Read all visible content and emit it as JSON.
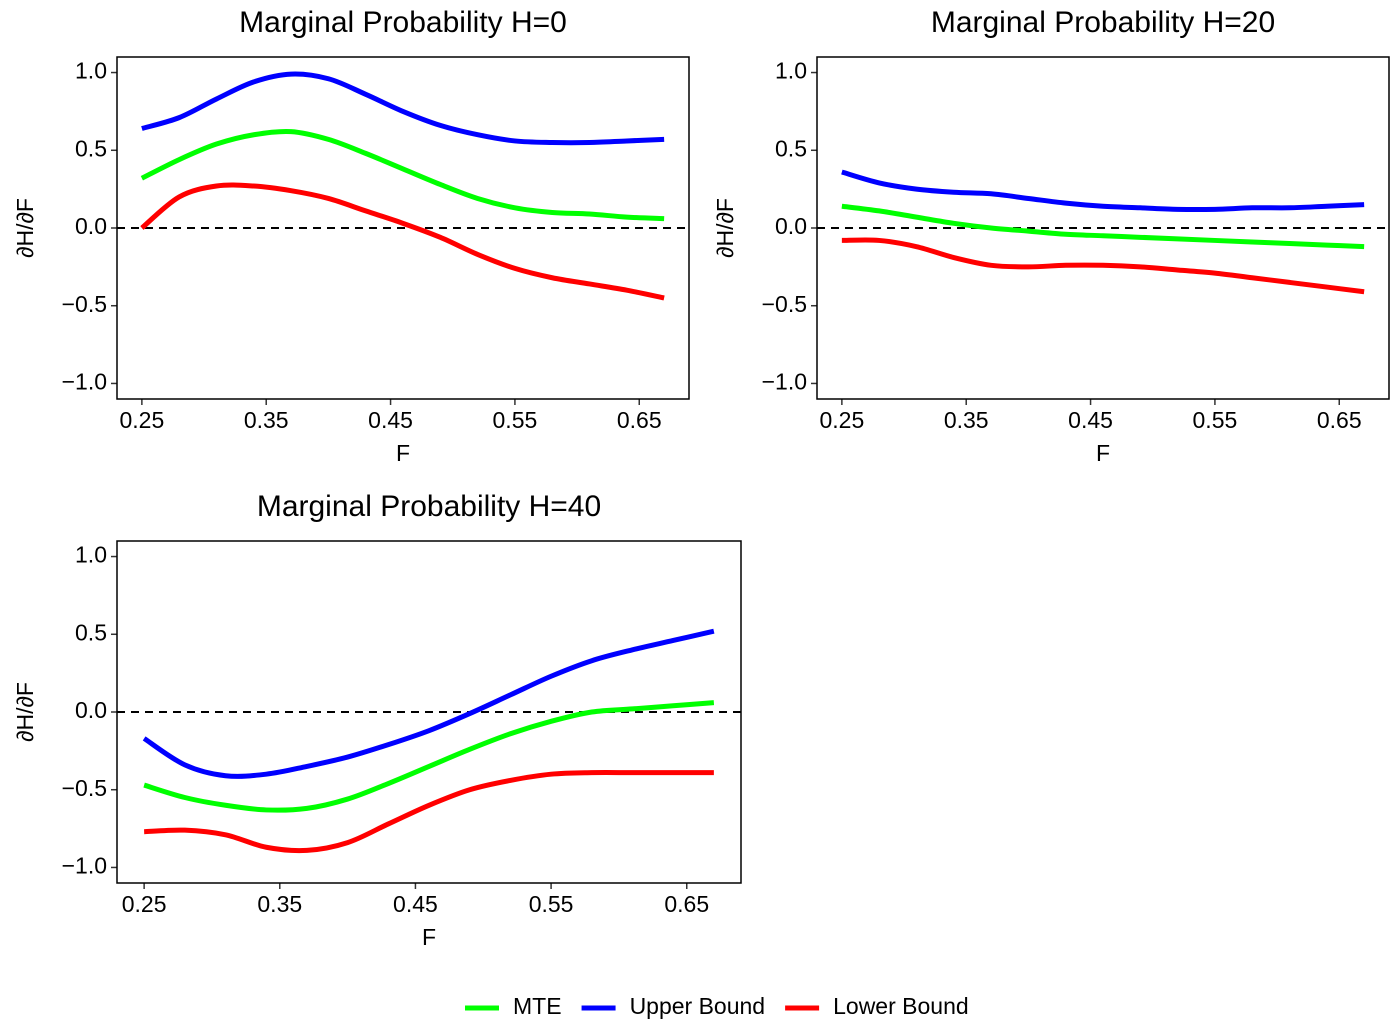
{
  "chart_data": [
    {
      "type": "line",
      "title": "Marginal Probability H=0",
      "xlabel": "F",
      "ylabel": "∂H/∂F",
      "x": [
        0.25,
        0.28,
        0.31,
        0.34,
        0.37,
        0.4,
        0.43,
        0.46,
        0.49,
        0.52,
        0.55,
        0.58,
        0.61,
        0.64,
        0.67
      ],
      "series": [
        {
          "name": "MTE",
          "color": "#00ff00",
          "values": [
            0.32,
            0.44,
            0.54,
            0.6,
            0.62,
            0.57,
            0.48,
            0.38,
            0.28,
            0.19,
            0.13,
            0.1,
            0.09,
            0.07,
            0.06
          ]
        },
        {
          "name": "Upper Bound",
          "color": "#0000ff",
          "values": [
            0.64,
            0.71,
            0.83,
            0.94,
            0.99,
            0.96,
            0.86,
            0.75,
            0.66,
            0.6,
            0.56,
            0.55,
            0.55,
            0.56,
            0.57
          ]
        },
        {
          "name": "Lower Bound",
          "color": "#ff0000",
          "values": [
            0.0,
            0.2,
            0.27,
            0.27,
            0.24,
            0.19,
            0.11,
            0.03,
            -0.06,
            -0.17,
            -0.26,
            -0.32,
            -0.36,
            -0.4,
            -0.45
          ]
        }
      ],
      "xlim": [
        0.23,
        0.69
      ],
      "xticks": [
        0.25,
        0.35,
        0.45,
        0.55,
        0.65
      ],
      "ylim": [
        -1.1,
        1.1
      ],
      "yticks": [
        {
          "value": -1,
          "label": "−1.0"
        },
        {
          "value": -0.5,
          "label": "−0.5"
        },
        {
          "value": 0,
          "label": "0.0"
        },
        0.5,
        {
          "value": 1,
          "label": "1.0"
        }
      ],
      "hline": 0
    },
    {
      "type": "line",
      "title": "Marginal Probability H=20",
      "xlabel": "F",
      "ylabel": "∂H/∂F",
      "x": [
        0.25,
        0.28,
        0.31,
        0.34,
        0.37,
        0.4,
        0.43,
        0.46,
        0.49,
        0.52,
        0.55,
        0.58,
        0.61,
        0.64,
        0.67
      ],
      "series": [
        {
          "name": "MTE",
          "color": "#00ff00",
          "values": [
            0.14,
            0.11,
            0.07,
            0.03,
            0.0,
            -0.02,
            -0.04,
            -0.05,
            -0.06,
            -0.07,
            -0.08,
            -0.09,
            -0.1,
            -0.11,
            -0.12
          ]
        },
        {
          "name": "Upper Bound",
          "color": "#0000ff",
          "values": [
            0.36,
            0.29,
            0.25,
            0.23,
            0.22,
            0.19,
            0.16,
            0.14,
            0.13,
            0.12,
            0.12,
            0.13,
            0.13,
            0.14,
            0.15
          ]
        },
        {
          "name": "Lower Bound",
          "color": "#ff0000",
          "values": [
            -0.08,
            -0.08,
            -0.12,
            -0.19,
            -0.24,
            -0.25,
            -0.24,
            -0.24,
            -0.25,
            -0.27,
            -0.29,
            -0.32,
            -0.35,
            -0.38,
            -0.41
          ]
        }
      ],
      "xlim": [
        0.23,
        0.69
      ],
      "xticks": [
        0.25,
        0.35,
        0.45,
        0.55,
        0.65
      ],
      "ylim": [
        -1.1,
        1.1
      ],
      "yticks": [
        {
          "value": -1,
          "label": "−1.0"
        },
        {
          "value": -0.5,
          "label": "−0.5"
        },
        {
          "value": 0,
          "label": "0.0"
        },
        0.5,
        {
          "value": 1,
          "label": "1.0"
        }
      ],
      "hline": 0
    },
    {
      "type": "line",
      "title": "Marginal Probability H=40",
      "xlabel": "F",
      "ylabel": "∂H/∂F",
      "x": [
        0.25,
        0.28,
        0.31,
        0.34,
        0.37,
        0.4,
        0.43,
        0.46,
        0.49,
        0.52,
        0.55,
        0.58,
        0.61,
        0.64,
        0.67
      ],
      "series": [
        {
          "name": "MTE",
          "color": "#00ff00",
          "values": [
            -0.47,
            -0.55,
            -0.6,
            -0.63,
            -0.62,
            -0.56,
            -0.46,
            -0.35,
            -0.24,
            -0.14,
            -0.06,
            0.0,
            0.02,
            0.04,
            0.06
          ]
        },
        {
          "name": "Upper Bound",
          "color": "#0000ff",
          "values": [
            -0.17,
            -0.34,
            -0.41,
            -0.4,
            -0.35,
            -0.29,
            -0.21,
            -0.12,
            -0.01,
            0.11,
            0.23,
            0.33,
            0.4,
            0.46,
            0.52
          ]
        },
        {
          "name": "Lower Bound",
          "color": "#ff0000",
          "values": [
            -0.77,
            -0.76,
            -0.79,
            -0.87,
            -0.89,
            -0.84,
            -0.72,
            -0.6,
            -0.5,
            -0.44,
            -0.4,
            -0.39,
            -0.39,
            -0.39,
            -0.39
          ]
        }
      ],
      "xlim": [
        0.23,
        0.69
      ],
      "xticks": [
        0.25,
        0.35,
        0.45,
        0.55,
        0.65
      ],
      "ylim": [
        -1.1,
        1.1
      ],
      "yticks": [
        {
          "value": -1,
          "label": "−1.0"
        },
        {
          "value": -0.5,
          "label": "−0.5"
        },
        {
          "value": 0,
          "label": "0.0"
        },
        0.5,
        {
          "value": 1,
          "label": "1.0"
        }
      ],
      "hline": 0
    }
  ]
}
